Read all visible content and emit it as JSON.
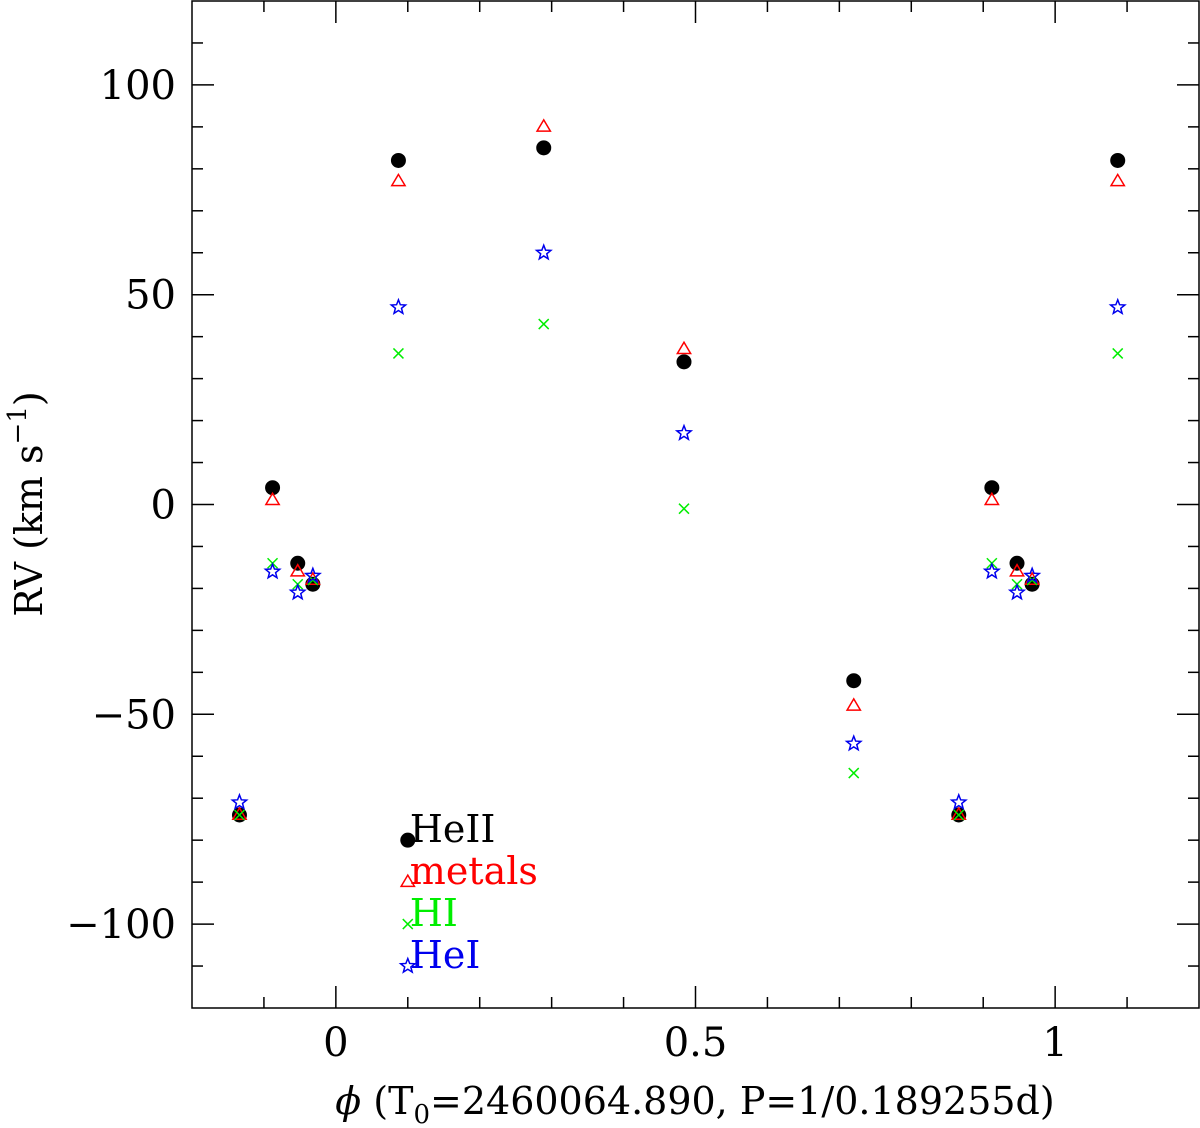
{
  "chart_data": {
    "type": "scatter",
    "title": "",
    "xlabel_parts": {
      "phi": "ϕ",
      "open": " (T",
      "sub": "0",
      "rest": "=2460064.890, P=1/0.189255d)"
    },
    "ylabel_parts": {
      "main": "RV (km s",
      "sup": "−1",
      "close": ")"
    },
    "xlim": [
      -0.2,
      1.2
    ],
    "ylim": [
      -120,
      120
    ],
    "x_ticks": [
      {
        "value": 0,
        "label": "0"
      },
      {
        "value": 0.5,
        "label": "0.5"
      },
      {
        "value": 1,
        "label": "1"
      }
    ],
    "y_ticks": [
      {
        "value": 100,
        "label": "100"
      },
      {
        "value": 50,
        "label": "50"
      },
      {
        "value": 0,
        "label": "0"
      },
      {
        "value": -50,
        "label": "−50"
      },
      {
        "value": -100,
        "label": "−100"
      }
    ],
    "x_minor_step": 0.1,
    "y_minor_step": 10,
    "grid": false,
    "series": [
      {
        "name": "HeII",
        "marker": "filled-circle",
        "color": "#000000",
        "legend_at": [
          0.1,
          -80
        ],
        "x": [
          -0.134,
          -0.088,
          -0.053,
          -0.032,
          0.087,
          0.289,
          0.484,
          0.72,
          0.866,
          0.912,
          0.947,
          0.968,
          1.087
        ],
        "y": [
          -74,
          4,
          -14,
          -19,
          82,
          85,
          34,
          -42,
          -74,
          4,
          -14,
          -19,
          82
        ]
      },
      {
        "name": "metals",
        "marker": "open-triangle",
        "color": "#ff0000",
        "legend_at": [
          0.1,
          -90
        ],
        "x": [
          -0.134,
          -0.088,
          -0.053,
          -0.032,
          0.087,
          0.289,
          0.484,
          0.72,
          0.866,
          0.912,
          0.947,
          0.968,
          1.087
        ],
        "y": [
          -74,
          1,
          -16,
          -18,
          77,
          90,
          37,
          -48,
          -74,
          1,
          -16,
          -18,
          77
        ]
      },
      {
        "name": "HI",
        "marker": "cross",
        "color": "#00ee00",
        "legend_at": [
          0.1,
          -100
        ],
        "x": [
          -0.134,
          -0.088,
          -0.053,
          -0.032,
          0.087,
          0.289,
          0.484,
          0.72,
          0.866,
          0.912,
          0.947,
          0.968,
          1.087
        ],
        "y": [
          -74,
          -14,
          -19,
          -18,
          36,
          43,
          -1,
          -64,
          -74,
          -14,
          -19,
          -18,
          36
        ]
      },
      {
        "name": "HeI",
        "marker": "open-star",
        "color": "#0000ee",
        "legend_at": [
          0.1,
          -110
        ],
        "x": [
          -0.134,
          -0.088,
          -0.053,
          -0.032,
          0.087,
          0.289,
          0.484,
          0.72,
          0.866,
          0.912,
          0.947,
          0.968,
          1.087
        ],
        "y": [
          -71,
          -16,
          -21,
          -17,
          47,
          60,
          17,
          -57,
          -71,
          -16,
          -21,
          -17,
          47
        ]
      }
    ]
  }
}
